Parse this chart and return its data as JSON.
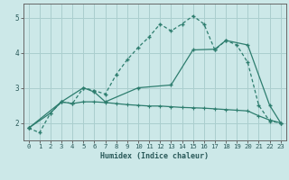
{
  "xlabel": "Humidex (Indice chaleur)",
  "bg_color": "#cce8e8",
  "grid_color": "#aacece",
  "line_color": "#2d7d6e",
  "xlim": [
    -0.5,
    23.5
  ],
  "ylim": [
    1.5,
    5.4
  ],
  "xticks": [
    0,
    1,
    2,
    3,
    4,
    5,
    6,
    7,
    8,
    9,
    10,
    11,
    12,
    13,
    14,
    15,
    16,
    17,
    18,
    19,
    20,
    21,
    22,
    23
  ],
  "yticks": [
    2,
    3,
    4,
    5
  ],
  "line1_x": [
    0,
    1,
    2,
    3,
    4,
    5,
    6,
    7,
    8,
    9,
    10,
    11,
    12,
    13,
    14,
    15,
    16,
    17,
    18,
    19,
    20,
    21,
    22,
    23
  ],
  "line1_y": [
    1.85,
    1.72,
    2.28,
    2.6,
    2.55,
    3.0,
    2.92,
    2.82,
    3.38,
    3.8,
    4.15,
    4.45,
    4.82,
    4.62,
    4.82,
    5.05,
    4.82,
    4.08,
    4.35,
    4.22,
    3.72,
    2.5,
    2.05,
    2.0
  ],
  "line2_x": [
    0,
    3,
    5,
    6,
    7,
    10,
    13,
    15,
    17,
    18,
    20,
    22,
    23
  ],
  "line2_y": [
    1.85,
    2.6,
    3.0,
    2.88,
    2.6,
    3.0,
    3.08,
    4.08,
    4.1,
    4.35,
    4.22,
    2.5,
    2.0
  ],
  "line3_x": [
    0,
    2,
    3,
    4,
    5,
    6,
    7,
    8,
    9,
    10,
    11,
    12,
    13,
    14,
    15,
    16,
    17,
    18,
    19,
    20,
    21,
    22,
    23
  ],
  "line3_y": [
    1.85,
    2.28,
    2.6,
    2.55,
    2.6,
    2.6,
    2.58,
    2.55,
    2.52,
    2.5,
    2.48,
    2.48,
    2.46,
    2.44,
    2.43,
    2.42,
    2.4,
    2.38,
    2.36,
    2.34,
    2.2,
    2.08,
    2.0
  ]
}
